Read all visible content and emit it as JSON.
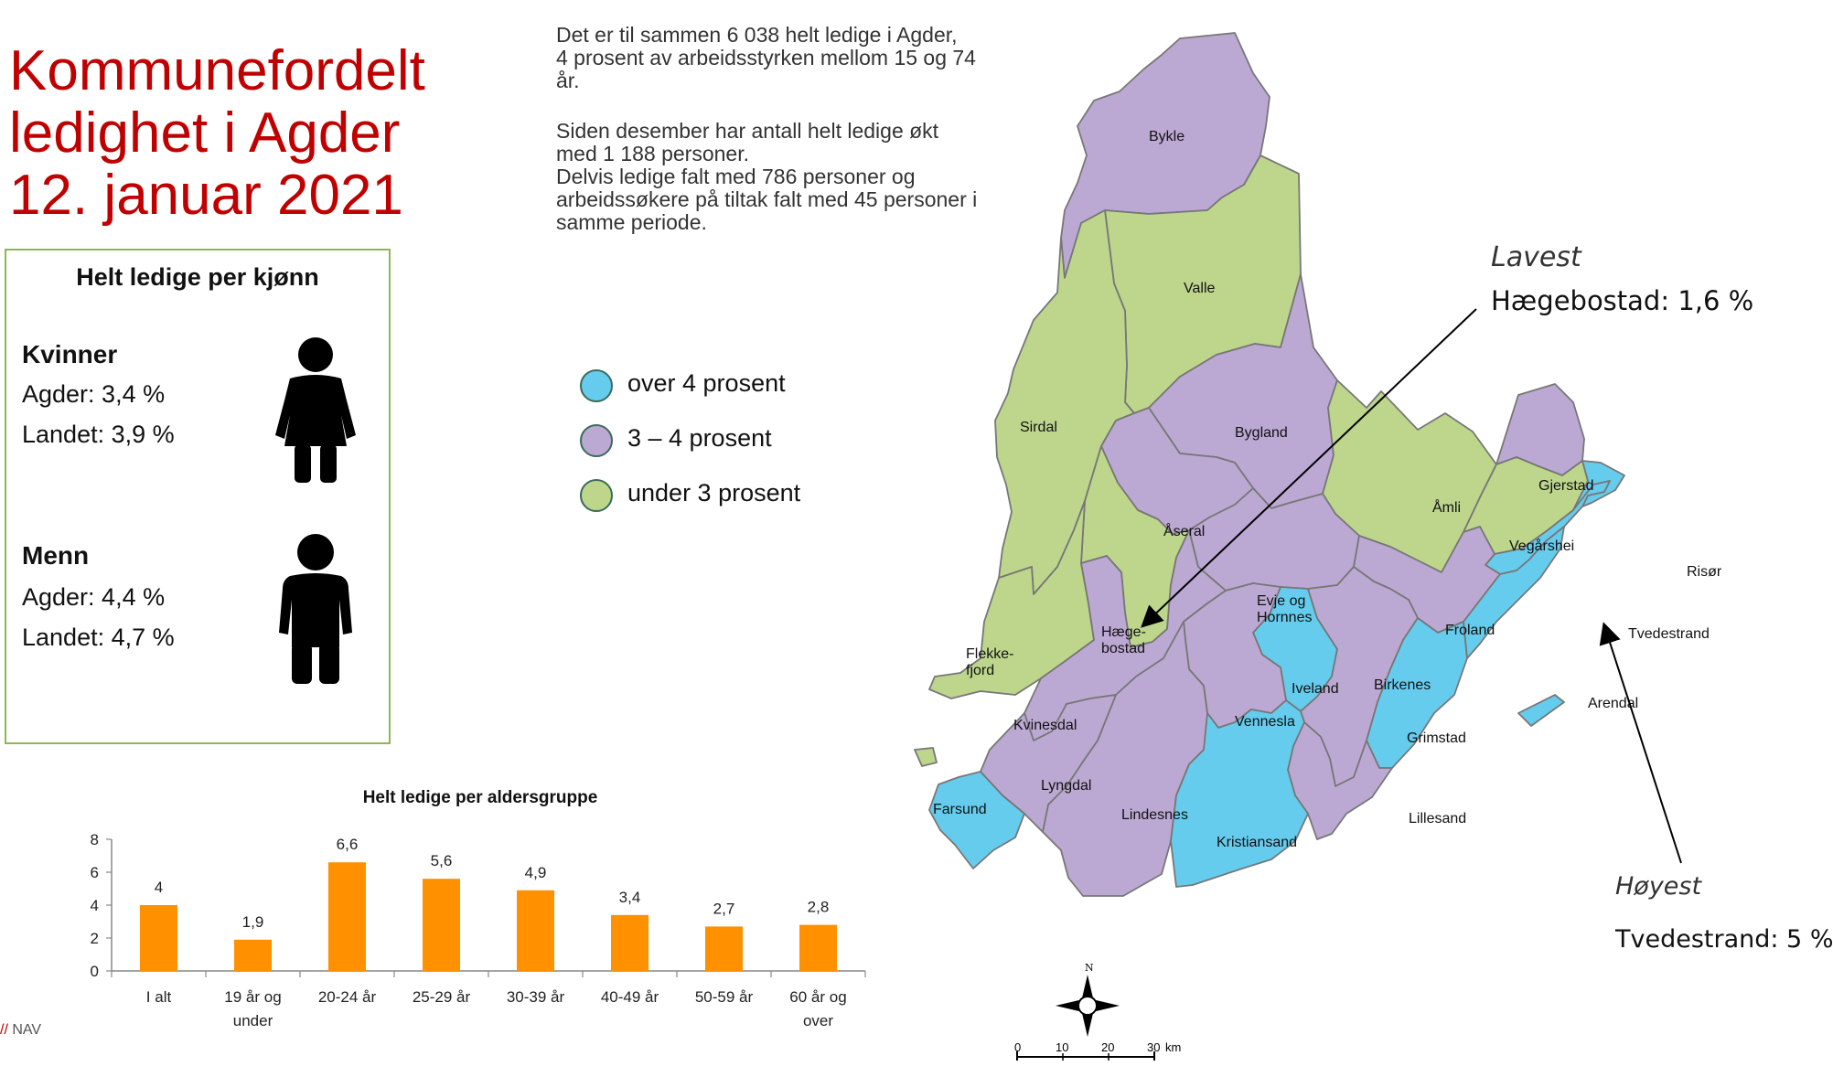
{
  "title": {
    "line1": "Kommunefordelt",
    "line2": "ledighet i Agder",
    "line3": "12. januar 2021"
  },
  "intro": {
    "p1_l1": "Det er til sammen 6 038 helt ledige i Agder,",
    "p1_l2": "4 prosent av arbeidsstyrken mellom 15 og 74",
    "p1_l3": "år.",
    "p2_l1": "Siden desember har antall helt ledige økt",
    "p2_l2": "med 1 188 personer.",
    "p2_l3": "Delvis ledige falt med 786 personer og",
    "p2_l4": "arbeidssøkere på tiltak falt med 45 personer i",
    "p2_l5": "samme periode."
  },
  "gender": {
    "heading": "Helt ledige per kjønn",
    "women": {
      "label": "Kvinner",
      "agder": "Agder: 3,4 %",
      "landet": "Landet: 3,9 %",
      "icon": "woman-icon"
    },
    "men": {
      "label": "Menn",
      "agder": "Agder: 4,4 %",
      "landet": "Landet: 4,7 %",
      "icon": "man-icon"
    }
  },
  "legend": [
    {
      "label": "over 4 prosent",
      "color": "#66ccee"
    },
    {
      "label": "3 – 4 prosent",
      "color": "#bca9d3"
    },
    {
      "label": "under 3 prosent",
      "color": "#bdd68c"
    }
  ],
  "colors": {
    "high": "#66ccee",
    "mid": "#bca9d3",
    "low": "#bdd68c",
    "border": "#777777",
    "title": "#c00000",
    "bar": "#ff9000"
  },
  "annotations": {
    "lowest_label": "Lavest",
    "lowest_value": "Hægebostad: 1,6 %",
    "highest_label": "Høyest",
    "highest_value": "Tvedestrand: 5 %"
  },
  "municipalities": [
    {
      "name": "Bykle",
      "class": "mid"
    },
    {
      "name": "Valle",
      "class": "low"
    },
    {
      "name": "Sirdal",
      "class": "low"
    },
    {
      "name": "Bygland",
      "class": "mid"
    },
    {
      "name": "Åmli",
      "class": "low"
    },
    {
      "name": "Gjerstad",
      "class": "mid"
    },
    {
      "name": "Vegårshei",
      "class": "low"
    },
    {
      "name": "Risør",
      "class": "high"
    },
    {
      "name": "Åseral",
      "class": "mid"
    },
    {
      "name": "Hæge-",
      "class": "low"
    },
    {
      "name": "bostad",
      "class": "low"
    },
    {
      "name": "Evje og",
      "class": "mid"
    },
    {
      "name": "Hornnes",
      "class": "mid"
    },
    {
      "name": "Froland",
      "class": "mid"
    },
    {
      "name": "Tvedestrand",
      "class": "high"
    },
    {
      "name": "Flekke-",
      "class": "low"
    },
    {
      "name": "fjord",
      "class": "low"
    },
    {
      "name": "Iveland",
      "class": "high"
    },
    {
      "name": "Birkenes",
      "class": "mid"
    },
    {
      "name": "Arendal",
      "class": "high"
    },
    {
      "name": "Kvinesdal",
      "class": "mid"
    },
    {
      "name": "Vennesla",
      "class": "mid"
    },
    {
      "name": "Grimstad",
      "class": "high"
    },
    {
      "name": "Farsund",
      "class": "high"
    },
    {
      "name": "Lyngdal",
      "class": "mid"
    },
    {
      "name": "Lindesnes",
      "class": "mid"
    },
    {
      "name": "Lillesand",
      "class": "mid"
    },
    {
      "name": "Kristiansand",
      "class": "high"
    }
  ],
  "scalebar": {
    "ticks": [
      "0",
      "10",
      "20",
      "30"
    ],
    "unit": "km",
    "north": "N"
  },
  "footer": {
    "brand_slash": "//",
    "brand": "NAV"
  },
  "chart_data": {
    "type": "bar",
    "title": "Helt ledige per aldersgruppe",
    "categories": [
      [
        "I alt"
      ],
      [
        "19 år og",
        "under"
      ],
      [
        "20-24 år"
      ],
      [
        "25-29 år"
      ],
      [
        "30-39 år"
      ],
      [
        "40-49 år"
      ],
      [
        "50-59 år"
      ],
      [
        "60 år og",
        "over"
      ]
    ],
    "values": [
      4,
      1.9,
      6.6,
      5.6,
      4.9,
      3.4,
      2.7,
      2.8
    ],
    "value_labels": [
      "4",
      "1,9",
      "6,6",
      "5,6",
      "4,9",
      "3,4",
      "2,7",
      "2,8"
    ],
    "yticks": [
      "0",
      "2",
      "4",
      "6",
      "8"
    ],
    "ylim": [
      0,
      8
    ],
    "grid": false,
    "color": "#ff9000"
  }
}
